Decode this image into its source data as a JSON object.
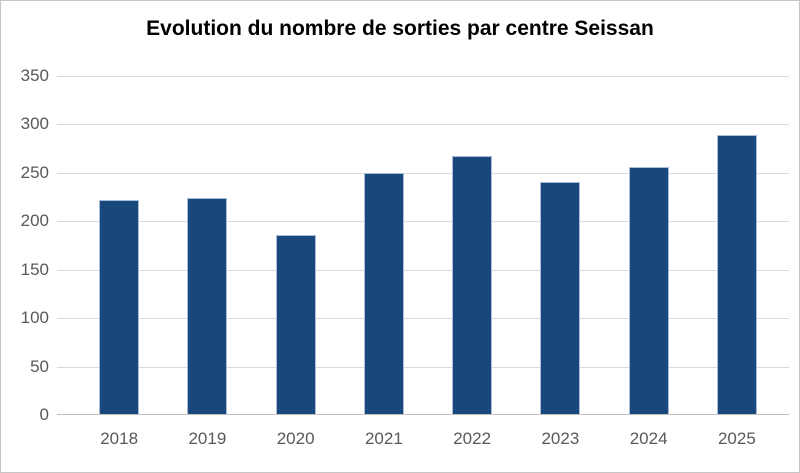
{
  "window": {
    "background_color": "#FFFFFF",
    "border_color": "#C6C6C6"
  },
  "chart_data": {
    "type": "bar",
    "title": "Evolution du nombre de sorties par centre Seissan",
    "categories": [
      "2018",
      "2019",
      "2020",
      "2021",
      "2022",
      "2023",
      "2024",
      "2025"
    ],
    "values": [
      221,
      223,
      185,
      249,
      266,
      240,
      255,
      288
    ],
    "xlabel": "",
    "ylabel": "",
    "ylim": [
      0,
      350
    ],
    "yticks": [
      0,
      50,
      100,
      150,
      200,
      250,
      300,
      350
    ],
    "grid": "horizontal",
    "legend_position": "none",
    "colors": {
      "bar_fill": "#17477B",
      "bar_border": "#A9BDD8",
      "gridline": "#D9D9D9",
      "axis_line": "#BFBFBF",
      "tick_label": "#595959",
      "title": "#000000"
    }
  }
}
